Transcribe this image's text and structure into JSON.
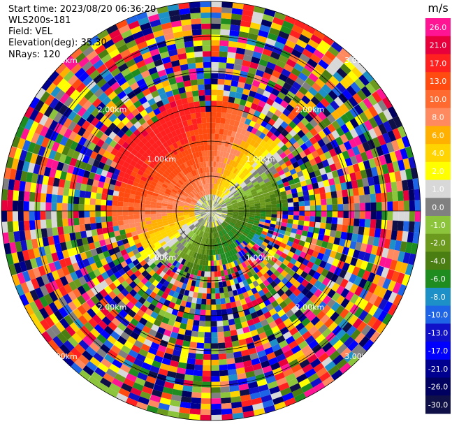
{
  "header": {
    "start_time": {
      "label": "Start time:",
      "value": "2023/08/20 06:36:20"
    },
    "instrument": "WLS200s-181",
    "field": {
      "label": "Field:",
      "value": "VEL"
    },
    "elevation": {
      "label": "Elevation(deg):",
      "value": "35.30"
    },
    "nrays": {
      "label": "NRays:",
      "value": "120"
    }
  },
  "chart_data": {
    "type": "heatmap",
    "subtype": "polar-ppi",
    "field": "VEL",
    "units": "m/s",
    "n_rays": 120,
    "elevation_deg": 35.3,
    "max_range_km": 3.0,
    "range_rings_km": [
      0.5,
      1.0,
      1.5,
      2.0,
      2.5,
      3.0
    ],
    "ring_labels": [
      "1.00km",
      "2.00km",
      "3.00km"
    ],
    "colorbar": {
      "unit_label": "m/s",
      "tick_labels": [
        "26.0",
        "21.0",
        "17.0",
        "13.0",
        "10.0",
        "8.0",
        "6.0",
        "4.0",
        "2.0",
        "1.0",
        "0.0",
        "-1.0",
        "-2.0",
        "-4.0",
        "-6.0",
        "-8.0",
        "-10.0",
        "-13.0",
        "-17.0",
        "-21.0",
        "-26.0",
        "-30.0"
      ],
      "colors": [
        "#ff1493",
        "#e8003c",
        "#ff2020",
        "#ff4a10",
        "#ff6a30",
        "#ff8a60",
        "#ffb000",
        "#ffd400",
        "#ffff00",
        "#d8d8d8",
        "#808080",
        "#8cc43c",
        "#6b9a1e",
        "#4a7d12",
        "#1e8c1e",
        "#1e90c8",
        "#1e64e6",
        "#1010c8",
        "#0000ff",
        "#000090",
        "#000060",
        "#101048"
      ]
    },
    "pattern": {
      "north_west_sector": "positive velocities 6 to 17 m/s (yellow to orange-red)",
      "east_sector": "negative velocities -6 to -13 m/s (green to blue)",
      "center": "near zero (gray)",
      "outer_ring": "noise beyond ~1.7 km"
    },
    "grid": true
  }
}
